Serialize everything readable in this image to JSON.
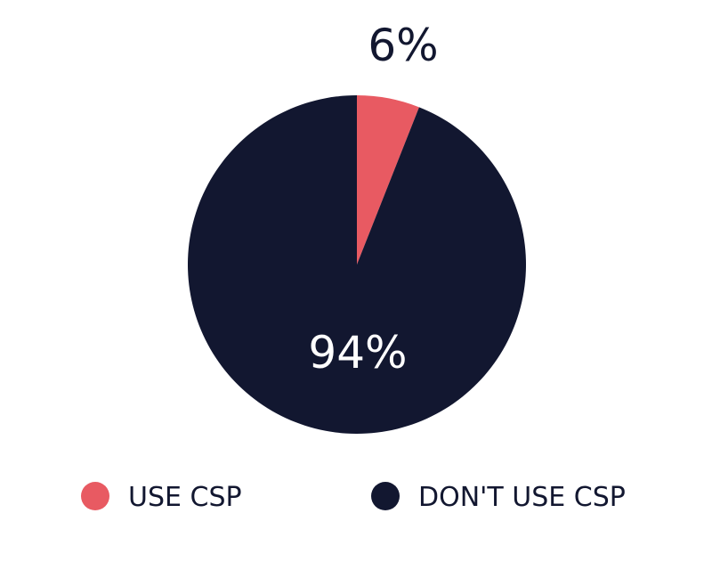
{
  "chart_data": {
    "type": "pie",
    "slices": [
      {
        "label": "USE CSP",
        "value": 6,
        "display": "6%",
        "color": "#E85A62"
      },
      {
        "label": "DON'T USE CSP",
        "value": 94,
        "display": "94%",
        "color": "#121730"
      }
    ],
    "legend_position": "bottom",
    "colors": {
      "text_dark": "#121730",
      "text_light": "#ffffff"
    }
  }
}
